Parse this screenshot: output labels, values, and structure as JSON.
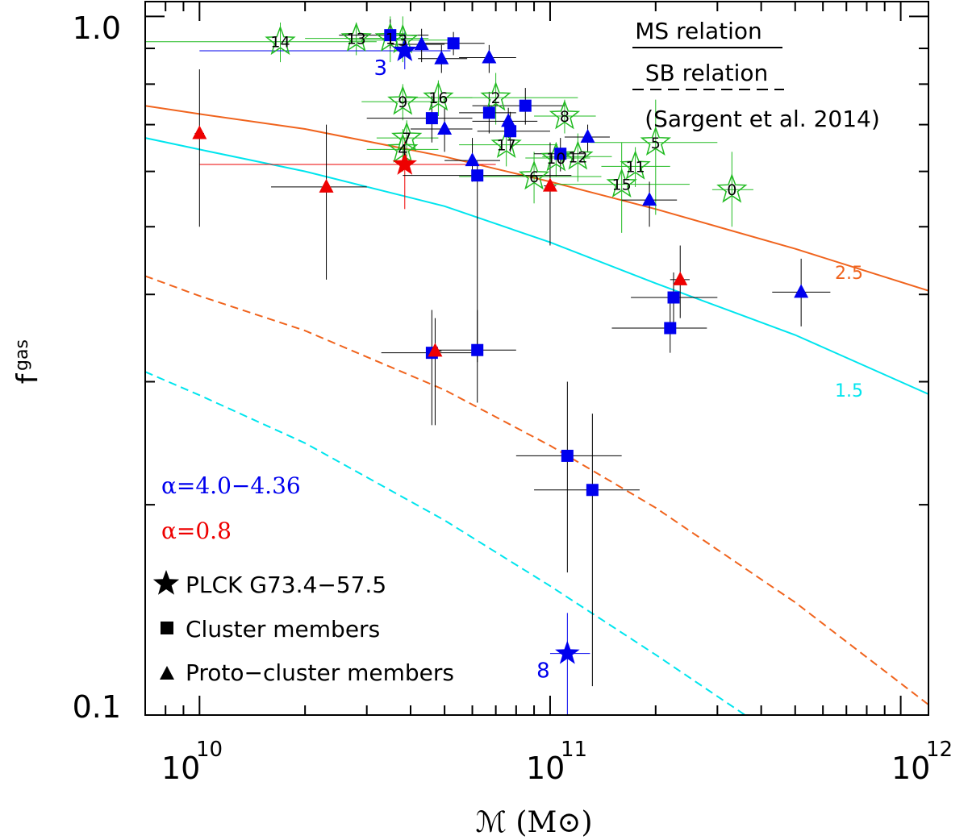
{
  "chart_data": {
    "type": "scatter",
    "xscale": "log",
    "yscale": "log",
    "xlim": [
      7000000000.0,
      1200000000000.0
    ],
    "ylim": [
      0.1,
      1.05
    ],
    "xlabel": "ℳ (M⊙)",
    "ylabel": "f",
    "ylabel_sub": "gas",
    "xticks": [
      {
        "value": 10000000000.0,
        "base": "10",
        "exp": "10"
      },
      {
        "value": 100000000000.0,
        "base": "10",
        "exp": "11"
      },
      {
        "value": 1000000000000.0,
        "base": "10",
        "exp": "12"
      }
    ],
    "yticks": [
      {
        "value": 0.1,
        "label": "0.1"
      },
      {
        "value": 1.0,
        "label": "1.0"
      }
    ],
    "relations_legend": {
      "ms": "MS relation",
      "sb": "SB relation",
      "ref": "(Sargent et al. 2014)"
    },
    "alpha_labels": {
      "blue": "α=4.0−4.36",
      "red": "α=0.8",
      "blue_color": "#0000ee",
      "red_color": "#ee0000"
    },
    "symbol_legend": [
      {
        "symbol": "star",
        "label": "PLCK G73.4−57.5"
      },
      {
        "symbol": "square",
        "label": "Cluster members"
      },
      {
        "symbol": "triangle",
        "label": "Proto−cluster members"
      }
    ],
    "curves": [
      {
        "name": "MS 2.5",
        "label": "2.5",
        "color": "#f0641e",
        "dash": false,
        "points": [
          [
            7000000000.0,
            0.745
          ],
          [
            10000000000.0,
            0.725
          ],
          [
            20000000000.0,
            0.69
          ],
          [
            50000000000.0,
            0.63
          ],
          [
            100000000000.0,
            0.58
          ],
          [
            200000000000.0,
            0.53
          ],
          [
            500000000000.0,
            0.465
          ],
          [
            1200000000000.0,
            0.405
          ]
        ]
      },
      {
        "name": "MS 1.5",
        "label": "1.5",
        "color": "#00e5ee",
        "dash": false,
        "points": [
          [
            7000000000.0,
            0.67
          ],
          [
            10000000000.0,
            0.645
          ],
          [
            20000000000.0,
            0.6
          ],
          [
            50000000000.0,
            0.535
          ],
          [
            100000000000.0,
            0.475
          ],
          [
            200000000000.0,
            0.415
          ],
          [
            500000000000.0,
            0.35
          ],
          [
            1200000000000.0,
            0.288
          ]
        ]
      },
      {
        "name": "SB 2.5",
        "label": "",
        "color": "#f0641e",
        "dash": true,
        "points": [
          [
            7000000000.0,
            0.425
          ],
          [
            10000000000.0,
            0.398
          ],
          [
            20000000000.0,
            0.355
          ],
          [
            50000000000.0,
            0.292
          ],
          [
            100000000000.0,
            0.243
          ],
          [
            200000000000.0,
            0.198
          ],
          [
            500000000000.0,
            0.145
          ],
          [
            1200000000000.0,
            0.1035
          ]
        ]
      },
      {
        "name": "SB 1.5",
        "label": "",
        "color": "#00e5ee",
        "dash": true,
        "points": [
          [
            7000000000.0,
            0.31
          ],
          [
            10000000000.0,
            0.287
          ],
          [
            20000000000.0,
            0.245
          ],
          [
            50000000000.0,
            0.19
          ],
          [
            100000000000.0,
            0.153
          ],
          [
            200000000000.0,
            0.122
          ],
          [
            360000000000.0,
            0.1
          ]
        ]
      }
    ],
    "series": [
      {
        "name": "Green open stars (numbered)",
        "marker": "open-star",
        "color": "#22bb22",
        "points": [
          {
            "x": 330000000000.0,
            "y": 0.565,
            "label": "0",
            "xerr": [
              290000000000.0,
              380000000000.0
            ],
            "yerr": [
              0.5,
              0.64
            ]
          },
          {
            "x": 35000000000.0,
            "y": 0.93,
            "label": "1",
            "xerr": [
              26000000000.0,
              45000000000.0
            ],
            "yerr": [
              0.86,
              1.0
            ]
          },
          {
            "x": 70000000000.0,
            "y": 0.765,
            "label": "2",
            "xerr": [
              50000000000.0,
              120000000000.0
            ],
            "yerr": [
              0.7,
              0.83
            ]
          },
          {
            "x": 38000000000.0,
            "y": 0.925,
            "label": "3",
            "xerr": [
              27000000000.0,
              51000000000.0
            ],
            "yerr": [
              0.86,
              1.0
            ]
          },
          {
            "x": 38000000000.0,
            "y": 0.645,
            "label": "4",
            "xerr": [
              30000000000.0,
              48000000000.0
            ],
            "yerr": [
              0.6,
              0.69
            ]
          },
          {
            "x": 200000000000.0,
            "y": 0.66,
            "label": "5",
            "xerr": [
              130000000000.0,
              300000000000.0
            ],
            "yerr": [
              0.52,
              0.76
            ]
          },
          {
            "x": 90000000000.0,
            "y": 0.59,
            "label": "6",
            "xerr": [
              55000000000.0,
              140000000000.0
            ],
            "yerr": [
              0.54,
              0.64
            ]
          },
          {
            "x": 39000000000.0,
            "y": 0.67,
            "label": "7",
            "xerr": [
              32000000000.0,
              48000000000.0
            ],
            "yerr": [
              0.63,
              0.71
            ]
          },
          {
            "x": 110000000000.0,
            "y": 0.72,
            "label": "8",
            "xerr": [
              90000000000.0,
              135000000000.0
            ],
            "yerr": [
              0.68,
              0.76
            ]
          },
          {
            "x": 38000000000.0,
            "y": 0.755,
            "label": "9",
            "xerr": [
              29000000000.0,
              50000000000.0
            ],
            "yerr": [
              0.71,
              0.8
            ]
          },
          {
            "x": 104000000000.0,
            "y": 0.627,
            "label": "10",
            "xerr": [
              85000000000.0,
              130000000000.0
            ],
            "yerr": [
              0.59,
              0.66
            ]
          },
          {
            "x": 175000000000.0,
            "y": 0.61,
            "label": "11",
            "xerr": [
              140000000000.0,
              220000000000.0
            ],
            "yerr": [
              0.57,
              0.65
            ]
          },
          {
            "x": 120000000000.0,
            "y": 0.63,
            "label": "12",
            "xerr": [
              95000000000.0,
              150000000000.0
            ],
            "yerr": [
              0.58,
              0.68
            ]
          },
          {
            "x": 28000000000.0,
            "y": 0.93,
            "label": "13",
            "xerr": [
              20000000000.0,
              40000000000.0
            ],
            "yerr": [
              0.88,
              0.98
            ]
          },
          {
            "x": 17000000000.0,
            "y": 0.92,
            "label": "14",
            "xerr": [
              7000000000.0,
              32000000000.0
            ],
            "yerr": [
              0.86,
              0.98
            ]
          },
          {
            "x": 160000000000.0,
            "y": 0.575,
            "label": "15",
            "xerr": [
              100000000000.0,
              250000000000.0
            ],
            "yerr": [
              0.49,
              0.66
            ]
          },
          {
            "x": 48000000000.0,
            "y": 0.765,
            "label": "16",
            "xerr": [
              38000000000.0,
              60000000000.0
            ],
            "yerr": [
              0.72,
              0.81
            ]
          },
          {
            "x": 75000000000.0,
            "y": 0.655,
            "label": "17",
            "xerr": [
              55000000000.0,
              105000000000.0
            ],
            "yerr": [
              0.61,
              0.7
            ]
          }
        ]
      },
      {
        "name": "PLCK stars",
        "marker": "star",
        "points": [
          {
            "x": 38500000000.0,
            "y": 0.893,
            "color": "#0000ee",
            "label": "3",
            "xerr": [
              10000000000.0,
              52000000000.0
            ],
            "yerr": [
              0.84,
              0.95
            ]
          },
          {
            "x": 38500000000.0,
            "y": 0.614,
            "color": "#ee0000",
            "label": "",
            "xerr": [
              10000000000.0,
              70000000000.0
            ],
            "yerr": [
              0.53,
              0.67
            ]
          },
          {
            "x": 112000000000.0,
            "y": 0.1225,
            "color": "#0000ee",
            "label": "8",
            "xerr": [
              100000000000.0,
              130000000000.0
            ],
            "yerr": [
              0.1,
              0.14
            ]
          }
        ]
      },
      {
        "name": "Cluster members",
        "marker": "square",
        "color": "#0000ee",
        "points": [
          {
            "x": 35000000000.0,
            "y": 0.94,
            "xerr": [
              25000000000.0,
              45000000000.0
            ],
            "yerr": [
              0.9,
              0.99
            ]
          },
          {
            "x": 53000000000.0,
            "y": 0.915,
            "xerr": [
              43000000000.0,
              65000000000.0
            ],
            "yerr": [
              0.88,
              0.95
            ]
          },
          {
            "x": 85000000000.0,
            "y": 0.745,
            "xerr": [
              60000000000.0,
              110000000000.0
            ],
            "yerr": [
              0.7,
              0.79
            ]
          },
          {
            "x": 67000000000.0,
            "y": 0.728,
            "xerr": [
              55000000000.0,
              80000000000.0
            ],
            "yerr": [
              0.68,
              0.78
            ]
          },
          {
            "x": 46000000000.0,
            "y": 0.715,
            "xerr": [
              30000000000.0,
              60000000000.0
            ],
            "yerr": [
              0.66,
              0.77
            ]
          },
          {
            "x": 77000000000.0,
            "y": 0.685,
            "xerr": [
              62000000000.0,
              100000000000.0
            ],
            "yerr": [
              0.64,
              0.73
            ]
          },
          {
            "x": 107000000000.0,
            "y": 0.636,
            "xerr": [
              90000000000.0,
              125000000000.0
            ],
            "yerr": [
              0.6,
              0.67
            ]
          },
          {
            "x": 62000000000.0,
            "y": 0.592,
            "xerr": [
              38000000000.0,
              115000000000.0
            ],
            "yerr": [
              0.32,
              0.62
            ]
          },
          {
            "x": 46000000000.0,
            "y": 0.33,
            "xerr": [
              33000000000.0,
              61000000000.0
            ],
            "yerr": [
              0.26,
              0.38
            ]
          },
          {
            "x": 62000000000.0,
            "y": 0.333,
            "xerr": [
              47000000000.0,
              80000000000.0
            ],
            "yerr": [
              0.28,
              0.38
            ]
          },
          {
            "x": 225000000000.0,
            "y": 0.396,
            "xerr": [
              170000000000.0,
              300000000000.0
            ],
            "yerr": [
              0.36,
              0.43
            ]
          },
          {
            "x": 220000000000.0,
            "y": 0.358,
            "xerr": [
              150000000000.0,
              280000000000.0
            ],
            "yerr": [
              0.33,
              0.39
            ]
          },
          {
            "x": 112000000000.0,
            "y": 0.235,
            "xerr": [
              80000000000.0,
              160000000000.0
            ],
            "yerr": [
              0.16,
              0.3
            ]
          },
          {
            "x": 132000000000.0,
            "y": 0.21,
            "xerr": [
              90000000000.0,
              180000000000.0
            ],
            "yerr": [
              0.11,
              0.27
            ]
          }
        ]
      },
      {
        "name": "Proto-cluster members",
        "marker": "triangle",
        "points": [
          {
            "x": 43000000000.0,
            "y": 0.912,
            "color": "#0000ee",
            "xerr": [
              35000000000.0,
              50000000000.0
            ],
            "yerr": [
              0.86,
              0.96
            ]
          },
          {
            "x": 49000000000.0,
            "y": 0.87,
            "color": "#0000ee",
            "xerr": [
              42000000000.0,
              58000000000.0
            ],
            "yerr": [
              0.83,
              0.91
            ]
          },
          {
            "x": 67000000000.0,
            "y": 0.873,
            "color": "#0000ee",
            "xerr": [
              55000000000.0,
              80000000000.0
            ],
            "yerr": [
              0.83,
              0.91
            ]
          },
          {
            "x": 76000000000.0,
            "y": 0.708,
            "color": "#0000ee",
            "xerr": [
              60000000000.0,
              92000000000.0
            ],
            "yerr": [
              0.67,
              0.74
            ]
          },
          {
            "x": 50000000000.0,
            "y": 0.69,
            "color": "#0000ee",
            "xerr": [
              40000000000.0,
              60000000000.0
            ],
            "yerr": [
              0.64,
              0.74
            ]
          },
          {
            "x": 128000000000.0,
            "y": 0.672,
            "color": "#0000ee",
            "xerr": [
              110000000000.0,
              148000000000.0
            ],
            "yerr": [
              0.64,
              0.7
            ]
          },
          {
            "x": 60000000000.0,
            "y": 0.622,
            "color": "#0000ee",
            "xerr": [
              50000000000.0,
              72000000000.0
            ],
            "yerr": [
              0.58,
              0.67
            ]
          },
          {
            "x": 192000000000.0,
            "y": 0.546,
            "color": "#0000ee",
            "xerr": [
              160000000000.0,
              230000000000.0
            ],
            "yerr": [
              0.5,
              0.58
            ]
          },
          {
            "x": 520000000000.0,
            "y": 0.403,
            "color": "#0000ee",
            "xerr": [
              430000000000.0,
              630000000000.0
            ],
            "yerr": [
              0.36,
              0.45
            ]
          },
          {
            "x": 10000000000.0,
            "y": 0.68,
            "color": "#ee0000",
            "xerr": [
              9700000000.0,
              10300000000.0
            ],
            "yerr": [
              0.5,
              0.84
            ]
          },
          {
            "x": 23000000000.0,
            "y": 0.57,
            "color": "#ee0000",
            "xerr": [
              16000000000.0,
              30000000000.0
            ],
            "yerr": [
              0.42,
              0.7
            ]
          },
          {
            "x": 100000000000.0,
            "y": 0.572,
            "color": "#ee0000",
            "xerr": [
              96000000000.0,
              104000000000.0
            ],
            "yerr": [
              0.47,
              0.66
            ]
          },
          {
            "x": 235000000000.0,
            "y": 0.42,
            "color": "#ee0000",
            "xerr": [
              220000000000.0,
              250000000000.0
            ],
            "yerr": [
              0.37,
              0.47
            ]
          },
          {
            "x": 47000000000.0,
            "y": 0.332,
            "color": "#ee0000",
            "xerr": [
              45000000000.0,
              49000000000.0
            ],
            "yerr": [
              0.26,
              0.37
            ]
          }
        ]
      }
    ]
  }
}
